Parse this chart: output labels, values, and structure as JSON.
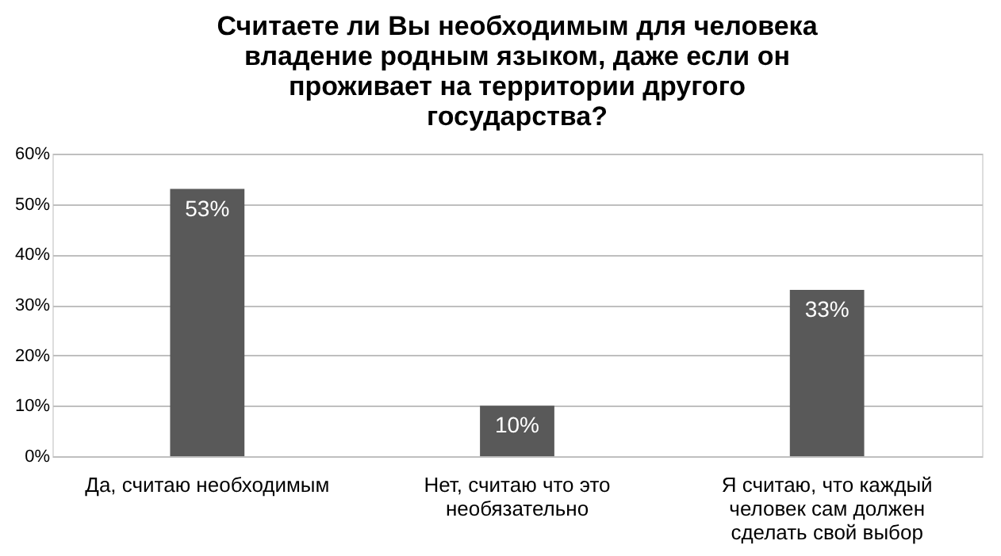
{
  "chart_data": {
    "type": "bar",
    "title": "Считаете ли Вы необходимым для человека владение родным языком, даже если он проживает на территории другого государства?",
    "categories": [
      "Да, считаю необходимым",
      "Нет, считаю что это необязательно",
      "Я считаю, что каждый человек сам должен сделать свой выбор"
    ],
    "values": [
      53,
      10,
      33
    ],
    "color": "#595959",
    "value_labels": [
      "53%",
      "10%",
      "33%"
    ],
    "ylim": [
      0,
      60
    ],
    "yticks": [
      {
        "value": 0,
        "label": "0%"
      },
      {
        "value": 10,
        "label": "10%"
      },
      {
        "value": 20,
        "label": "20%"
      },
      {
        "value": 30,
        "label": "30%"
      },
      {
        "value": 40,
        "label": "40%"
      },
      {
        "value": 50,
        "label": "50%"
      },
      {
        "value": 60,
        "label": "60%"
      }
    ],
    "grid": "y"
  }
}
